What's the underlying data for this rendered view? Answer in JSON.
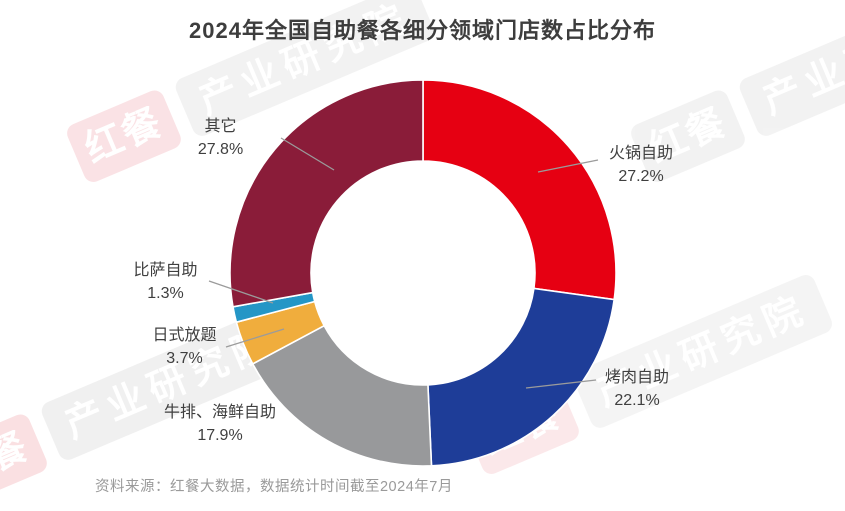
{
  "title": "2024年全国自助餐各细分领域门店数占比分布",
  "source_note": "资料来源：红餐大数据，数据统计时间截至2024年7月",
  "watermark": {
    "logo": "红餐",
    "org": "产业研究院"
  },
  "chart_data": {
    "type": "pie",
    "subtype": "donut",
    "title": "2024年全国自助餐各细分领域门店数占比分布",
    "unit": "%",
    "direction": "clockwise",
    "start_angle_deg": 0,
    "inner_radius_ratio": 0.58,
    "categories": [
      "火锅自助",
      "烤肉自助",
      "牛排、海鲜自助",
      "日式放题",
      "比萨自助",
      "其它"
    ],
    "values": [
      27.2,
      22.1,
      17.9,
      3.7,
      1.3,
      27.8
    ],
    "colors": [
      "#e60012",
      "#1e3d98",
      "#98999b",
      "#f0ad3d",
      "#2496c6",
      "#8a1c39"
    ],
    "ids": [
      "hotpot-buffet",
      "bbq-buffet",
      "steak-seafood-buffet",
      "japanese-ayce",
      "pizza-buffet",
      "others"
    ],
    "labels": [
      {
        "name": "火锅自助",
        "pct": "27.2%"
      },
      {
        "name": "烤肉自助",
        "pct": "22.1%"
      },
      {
        "name": "牛排、海鲜自助",
        "pct": "17.9%"
      },
      {
        "name": "日式放题",
        "pct": "3.7%"
      },
      {
        "name": "比萨自助",
        "pct": "1.3%"
      },
      {
        "name": "其它",
        "pct": "27.8%"
      }
    ]
  }
}
